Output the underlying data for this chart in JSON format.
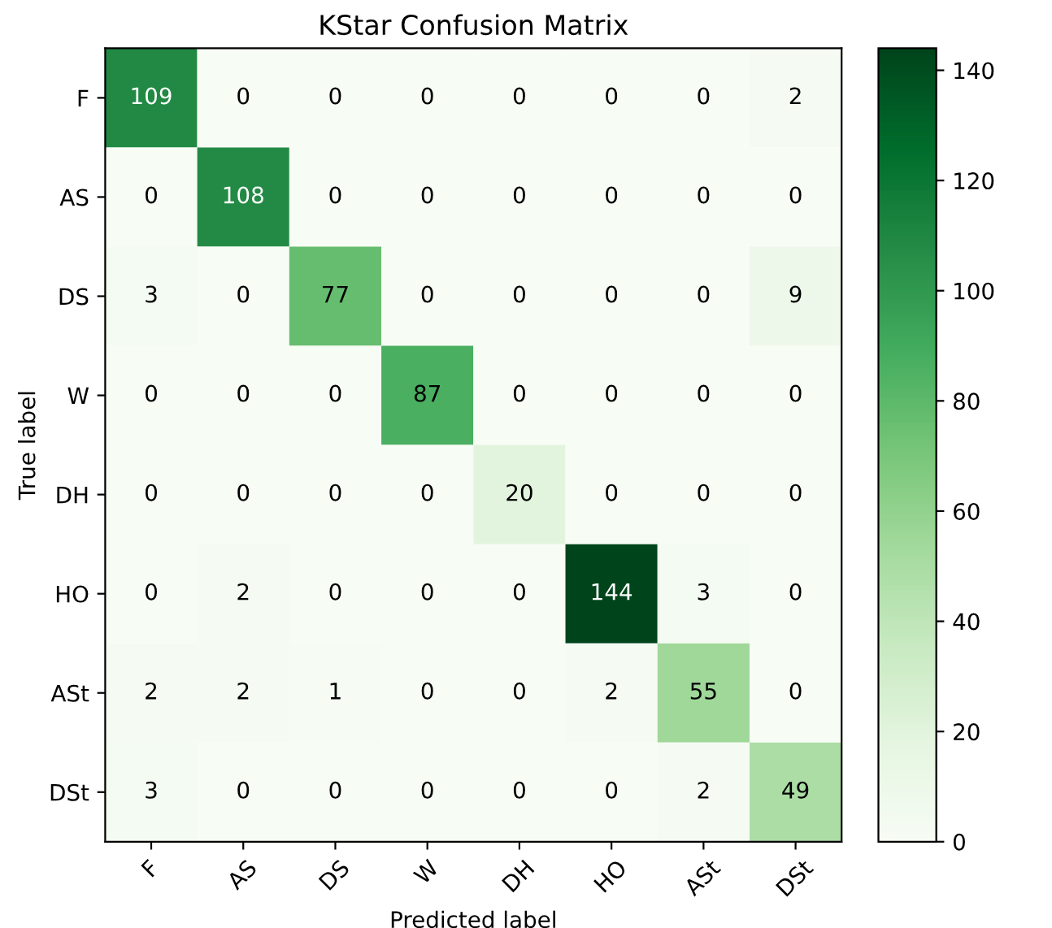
{
  "chart_data": {
    "type": "heatmap",
    "title": "KStar Confusion Matrix",
    "xlabel": "Predicted label",
    "ylabel": "True label",
    "categories": [
      "F",
      "AS",
      "DS",
      "W",
      "DH",
      "HO",
      "ASt",
      "DSt"
    ],
    "y_categories": [
      "F",
      "AS",
      "DS",
      "W",
      "DH",
      "HO",
      "ASt",
      "DSt"
    ],
    "cells": [
      [
        109,
        0,
        0,
        0,
        0,
        0,
        0,
        2
      ],
      [
        0,
        108,
        0,
        0,
        0,
        0,
        0,
        0
      ],
      [
        3,
        0,
        77,
        0,
        0,
        0,
        0,
        9
      ],
      [
        0,
        0,
        0,
        87,
        0,
        0,
        0,
        0
      ],
      [
        0,
        0,
        0,
        0,
        20,
        0,
        0,
        0
      ],
      [
        0,
        2,
        0,
        0,
        0,
        144,
        3,
        0
      ],
      [
        2,
        2,
        1,
        0,
        0,
        2,
        55,
        0
      ],
      [
        3,
        0,
        0,
        0,
        0,
        0,
        2,
        49
      ]
    ],
    "clim": [
      0,
      144
    ],
    "cticks": [
      0,
      20,
      40,
      60,
      80,
      100,
      120,
      140
    ],
    "data_labels": true
  }
}
